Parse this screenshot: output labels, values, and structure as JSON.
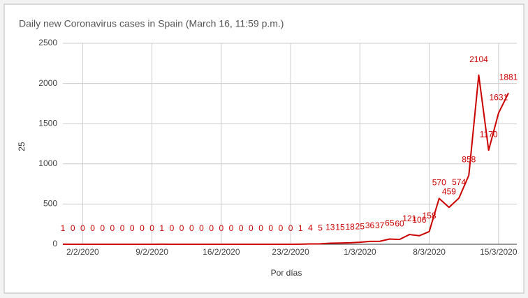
{
  "chart_data": {
    "type": "line",
    "title": "Daily new Coronavirus cases in Spain (March 16, 11:59 p.m.)",
    "y_label": "25",
    "x_label": "Por días",
    "categories": [
      null,
      null,
      "2/2/2020",
      null,
      null,
      null,
      null,
      null,
      null,
      "9/2/2020",
      null,
      null,
      null,
      null,
      null,
      null,
      "16/2/2020",
      null,
      null,
      null,
      null,
      null,
      null,
      "23/2/2020",
      null,
      null,
      null,
      null,
      null,
      null,
      "1/3/2020",
      null,
      null,
      null,
      null,
      null,
      null,
      "8/3/2020",
      null,
      null,
      null,
      null,
      null,
      null,
      "15/3/2020",
      null
    ],
    "series": [
      {
        "name": "25",
        "color": "#cc0000",
        "values": [
          1,
          0,
          0,
          0,
          0,
          0,
          0,
          0,
          0,
          0,
          1,
          0,
          0,
          0,
          0,
          0,
          0,
          0,
          0,
          0,
          0,
          0,
          0,
          0,
          1,
          4,
          5,
          13,
          15,
          18,
          25,
          36,
          37,
          65,
          60,
          121,
          106,
          158,
          570,
          459,
          574,
          858,
          2104,
          1170,
          1631,
          1881
        ]
      }
    ],
    "ylim": [
      0,
      2500
    ],
    "yticks": [
      0,
      500,
      1000,
      1500,
      2000,
      2500
    ],
    "grid": true
  }
}
